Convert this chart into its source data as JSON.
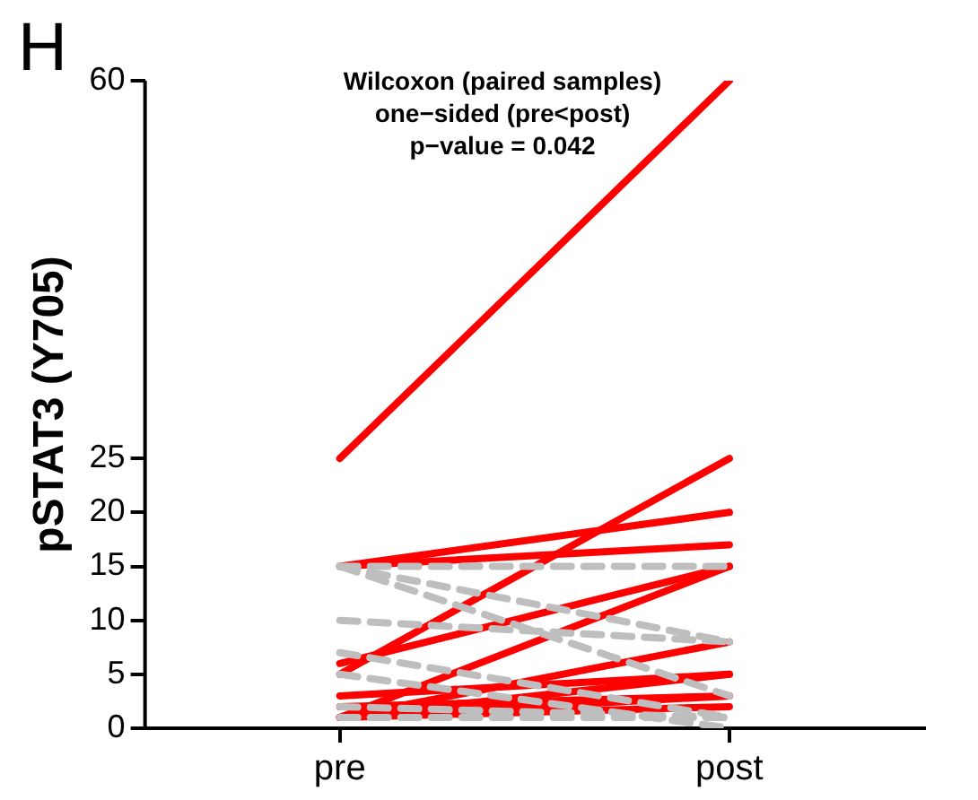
{
  "chart_data": {
    "type": "line",
    "title": "Wilcoxon (paired samples)",
    "subtitle": "one−sided (pre<post)",
    "annotations": [
      "p−value = 0.042",
      "H"
    ],
    "ylabel": "pSTAT3 (Y705)",
    "categories": [
      "pre",
      "post"
    ],
    "ylim": [
      0,
      60
    ],
    "yticks": [
      0,
      5,
      10,
      15,
      20,
      25,
      60
    ],
    "grid": false,
    "legend": false,
    "marker": "none",
    "series": [
      {
        "color": "#bebebe",
        "line_style": "dashed",
        "values": [
          15,
          15
        ]
      },
      {
        "color": "#bebebe",
        "line_style": "dashed",
        "values": [
          15,
          8
        ]
      },
      {
        "color": "#bebebe",
        "line_style": "dashed",
        "values": [
          15,
          3
        ]
      },
      {
        "color": "#bebebe",
        "line_style": "dashed",
        "values": [
          10,
          8
        ]
      },
      {
        "color": "#bebebe",
        "line_style": "dashed",
        "values": [
          7,
          1
        ]
      },
      {
        "color": "#bebebe",
        "line_style": "dashed",
        "values": [
          5,
          0
        ]
      },
      {
        "color": "#bebebe",
        "line_style": "dashed",
        "values": [
          2,
          1
        ]
      },
      {
        "color": "#bebebe",
        "line_style": "dashed",
        "values": [
          1,
          1
        ]
      },
      {
        "color": "#ff0000",
        "line_style": "solid",
        "values": [
          25,
          60
        ]
      },
      {
        "color": "#ff0000",
        "line_style": "solid",
        "values": [
          15,
          20
        ]
      },
      {
        "color": "#ff0000",
        "line_style": "solid",
        "values": [
          15,
          17
        ]
      },
      {
        "color": "#ff0000",
        "line_style": "solid",
        "values": [
          5,
          25
        ]
      },
      {
        "color": "#ff0000",
        "line_style": "solid",
        "values": [
          6,
          15
        ]
      },
      {
        "color": "#ff0000",
        "line_style": "solid",
        "values": [
          1,
          15
        ]
      },
      {
        "color": "#ff0000",
        "line_style": "solid",
        "values": [
          1,
          8
        ]
      },
      {
        "color": "#ff0000",
        "line_style": "solid",
        "values": [
          3,
          5
        ]
      },
      {
        "color": "#ff0000",
        "line_style": "solid",
        "values": [
          1,
          5
        ]
      },
      {
        "color": "#ff0000",
        "line_style": "solid",
        "values": [
          1,
          3
        ]
      },
      {
        "color": "#ff0000",
        "line_style": "solid",
        "values": [
          2,
          3
        ]
      },
      {
        "color": "#ff0000",
        "line_style": "solid",
        "values": [
          1,
          2
        ]
      }
    ]
  }
}
